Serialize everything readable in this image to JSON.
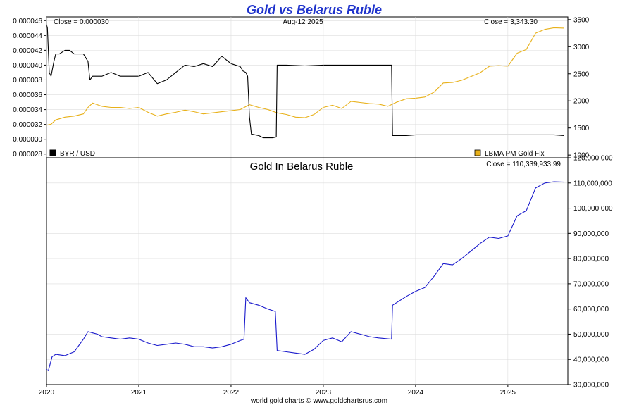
{
  "title": "Gold vs Belarus Ruble",
  "footer": "world gold charts © www.goldchartsrus.com",
  "colors": {
    "title": "#1f33cc",
    "byr": "#000000",
    "gold": "#e8b11a",
    "ruble_gold": "#1a1acc",
    "grid": "#dddddd"
  },
  "chart_data": [
    {
      "type": "line",
      "panel": "top",
      "date_label": "Aug-12  2025",
      "close_left": "Close = 0.000030",
      "close_right": "Close = 3,343.30",
      "left_axis": {
        "ticks": [
          "0.000046",
          "0.000044",
          "0.000042",
          "0.000040",
          "0.000038",
          "0.000036",
          "0.000034",
          "0.000032",
          "0.000030",
          "0.000028"
        ],
        "ylim": [
          2.75e-05,
          4.65e-05
        ]
      },
      "right_axis": {
        "ticks": [
          "3500",
          "3000",
          "2500",
          "2000",
          "1500",
          "1000"
        ],
        "ylim": [
          950,
          3550
        ]
      },
      "legend": [
        "BYR / USD",
        "LBMA PM Gold Fix"
      ],
      "legend_placement": "bottom",
      "series": [
        {
          "name": "BYR / USD",
          "axis": "left",
          "x": [
            2020.0,
            2020.01,
            2020.03,
            2020.05,
            2020.08,
            2020.1,
            2020.14,
            2020.2,
            2020.25,
            2020.3,
            2020.4,
            2020.45,
            2020.47,
            2020.5,
            2020.6,
            2020.7,
            2020.8,
            2020.9,
            2021.0,
            2021.1,
            2021.2,
            2021.3,
            2021.4,
            2021.5,
            2021.6,
            2021.7,
            2021.8,
            2021.9,
            2022.0,
            2022.1,
            2022.13,
            2022.16,
            2022.18,
            2022.2,
            2022.22,
            2022.3,
            2022.35,
            2022.45,
            2022.49,
            2022.5,
            2022.6,
            2022.8,
            2023.0,
            2023.2,
            2023.4,
            2023.6,
            2023.74,
            2023.75,
            2023.9,
            2024.0,
            2024.5,
            2025.0,
            2025.5,
            2025.61
          ],
          "y": [
            4.55e-05,
            4.5e-05,
            3.9e-05,
            3.85e-05,
            4.05e-05,
            4.15e-05,
            4.15e-05,
            4.2e-05,
            4.2e-05,
            4.15e-05,
            4.15e-05,
            4.05e-05,
            3.8e-05,
            3.85e-05,
            3.85e-05,
            3.9e-05,
            3.85e-05,
            3.85e-05,
            3.85e-05,
            3.9e-05,
            3.75e-05,
            3.8e-05,
            3.9e-05,
            4e-05,
            3.98e-05,
            4.02e-05,
            3.98e-05,
            4.12e-05,
            4.02e-05,
            3.98e-05,
            3.92e-05,
            3.9e-05,
            3.85e-05,
            3.3e-05,
            3.07e-05,
            3.05e-05,
            3.02e-05,
            3.02e-05,
            3.03e-05,
            4e-05,
            4e-05,
            3.99e-05,
            4e-05,
            4e-05,
            4e-05,
            4e-05,
            4e-05,
            3.05e-05,
            3.05e-05,
            3.06e-05,
            3.06e-05,
            3.06e-05,
            3.06e-05,
            3.05e-05
          ]
        },
        {
          "name": "LBMA PM Gold Fix",
          "axis": "right",
          "x": [
            2020.0,
            2020.05,
            2020.1,
            2020.2,
            2020.3,
            2020.4,
            2020.45,
            2020.5,
            2020.55,
            2020.6,
            2020.7,
            2020.8,
            2020.9,
            2021.0,
            2021.1,
            2021.2,
            2021.3,
            2021.4,
            2021.5,
            2021.6,
            2021.7,
            2021.8,
            2021.9,
            2022.0,
            2022.1,
            2022.2,
            2022.3,
            2022.4,
            2022.5,
            2022.6,
            2022.7,
            2022.8,
            2022.9,
            2023.0,
            2023.1,
            2023.2,
            2023.3,
            2023.4,
            2023.5,
            2023.6,
            2023.7,
            2023.8,
            2023.9,
            2024.0,
            2024.1,
            2024.2,
            2024.3,
            2024.4,
            2024.5,
            2024.6,
            2024.7,
            2024.8,
            2024.9,
            2025.0,
            2025.1,
            2025.2,
            2025.3,
            2025.4,
            2025.5,
            2025.61
          ],
          "y": [
            1550,
            1570,
            1650,
            1700,
            1720,
            1760,
            1880,
            1960,
            1930,
            1900,
            1880,
            1880,
            1860,
            1880,
            1790,
            1720,
            1760,
            1790,
            1830,
            1800,
            1760,
            1780,
            1800,
            1820,
            1840,
            1930,
            1880,
            1840,
            1780,
            1750,
            1700,
            1690,
            1750,
            1880,
            1920,
            1860,
            1990,
            1970,
            1950,
            1940,
            1900,
            1980,
            2040,
            2050,
            2070,
            2160,
            2330,
            2340,
            2380,
            2450,
            2520,
            2640,
            2650,
            2640,
            2880,
            2950,
            3250,
            3320,
            3350,
            3343
          ]
        }
      ]
    },
    {
      "type": "line",
      "panel": "bottom",
      "title": "Gold In Belarus Ruble",
      "close_right": "Close = 110,339,933.99",
      "right_axis": {
        "ticks": [
          "120,000,000",
          "110,000,000",
          "100,000,000",
          "90,000,000",
          "80,000,000",
          "70,000,000",
          "60,000,000",
          "50,000,000",
          "40,000,000",
          "30,000,000"
        ],
        "ylim": [
          30000000,
          120000000
        ]
      },
      "x_axis": {
        "ticks": [
          "2020",
          "2021",
          "2022",
          "2023",
          "2024",
          "2025"
        ],
        "xlim": [
          2020.0,
          2025.65
        ]
      },
      "series": [
        {
          "name": "Gold In Belarus Ruble",
          "x": [
            2020.0,
            2020.02,
            2020.06,
            2020.1,
            2020.2,
            2020.3,
            2020.4,
            2020.45,
            2020.5,
            2020.55,
            2020.6,
            2020.7,
            2020.8,
            2020.9,
            2021.0,
            2021.1,
            2021.2,
            2021.3,
            2021.4,
            2021.5,
            2021.6,
            2021.7,
            2021.8,
            2021.9,
            2022.0,
            2022.1,
            2022.14,
            2022.16,
            2022.2,
            2022.3,
            2022.4,
            2022.48,
            2022.5,
            2022.6,
            2022.7,
            2022.8,
            2022.9,
            2023.0,
            2023.1,
            2023.2,
            2023.3,
            2023.4,
            2023.5,
            2023.6,
            2023.74,
            2023.75,
            2023.9,
            2024.0,
            2024.1,
            2024.2,
            2024.3,
            2024.4,
            2024.5,
            2024.6,
            2024.7,
            2024.8,
            2024.9,
            2025.0,
            2025.1,
            2025.2,
            2025.3,
            2025.4,
            2025.5,
            2025.61
          ],
          "y": [
            36000000,
            35500000,
            41000000,
            42000000,
            41500000,
            43000000,
            48000000,
            51000000,
            50500000,
            50000000,
            49000000,
            48500000,
            48000000,
            48500000,
            48000000,
            46500000,
            45500000,
            46000000,
            46500000,
            46000000,
            45000000,
            45000000,
            44500000,
            45000000,
            46000000,
            47500000,
            48000000,
            64500000,
            62500000,
            61500000,
            60000000,
            59000000,
            43500000,
            43000000,
            42500000,
            42000000,
            44000000,
            47500000,
            48500000,
            47000000,
            51000000,
            50000000,
            49000000,
            48500000,
            48000000,
            61500000,
            65000000,
            67000000,
            68500000,
            73000000,
            78000000,
            77500000,
            80000000,
            83000000,
            86000000,
            88500000,
            88000000,
            89000000,
            97000000,
            99000000,
            108000000,
            110000000,
            110500000,
            110339934
          ]
        }
      ]
    }
  ]
}
